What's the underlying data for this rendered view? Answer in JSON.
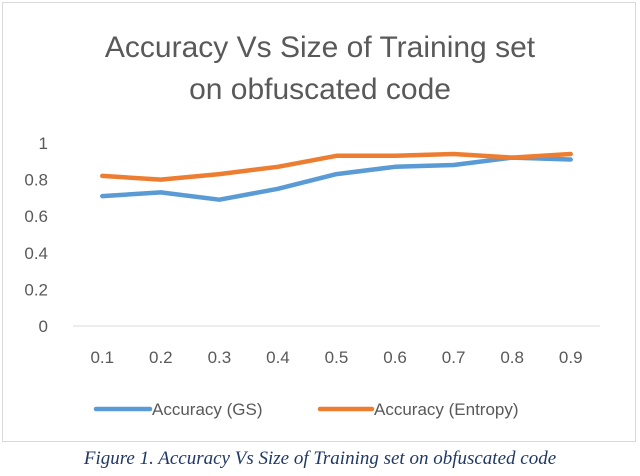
{
  "chart_data": {
    "type": "line",
    "title_line1": "Accuracy Vs Size of Training set",
    "title_line2": "on obfuscated code",
    "x": [
      "0.1",
      "0.2",
      "0.3",
      "0.4",
      "0.5",
      "0.6",
      "0.7",
      "0.8",
      "0.9"
    ],
    "y_ticks": [
      "0",
      "0.2",
      "0.4",
      "0.6",
      "0.8",
      "1"
    ],
    "ylim": [
      0,
      1
    ],
    "grid": false,
    "legend_position": "bottom",
    "series": [
      {
        "name": "Accuracy (GS)",
        "color": "#5b9bd5",
        "values": [
          0.71,
          0.73,
          0.69,
          0.75,
          0.83,
          0.87,
          0.88,
          0.92,
          0.91
        ]
      },
      {
        "name": "Accuracy (Entropy)",
        "color": "#ed7d31",
        "values": [
          0.82,
          0.8,
          0.83,
          0.87,
          0.93,
          0.93,
          0.94,
          0.92,
          0.94
        ]
      }
    ]
  },
  "caption": "Figure 1. Accuracy Vs Size of Training set on obfuscated code"
}
